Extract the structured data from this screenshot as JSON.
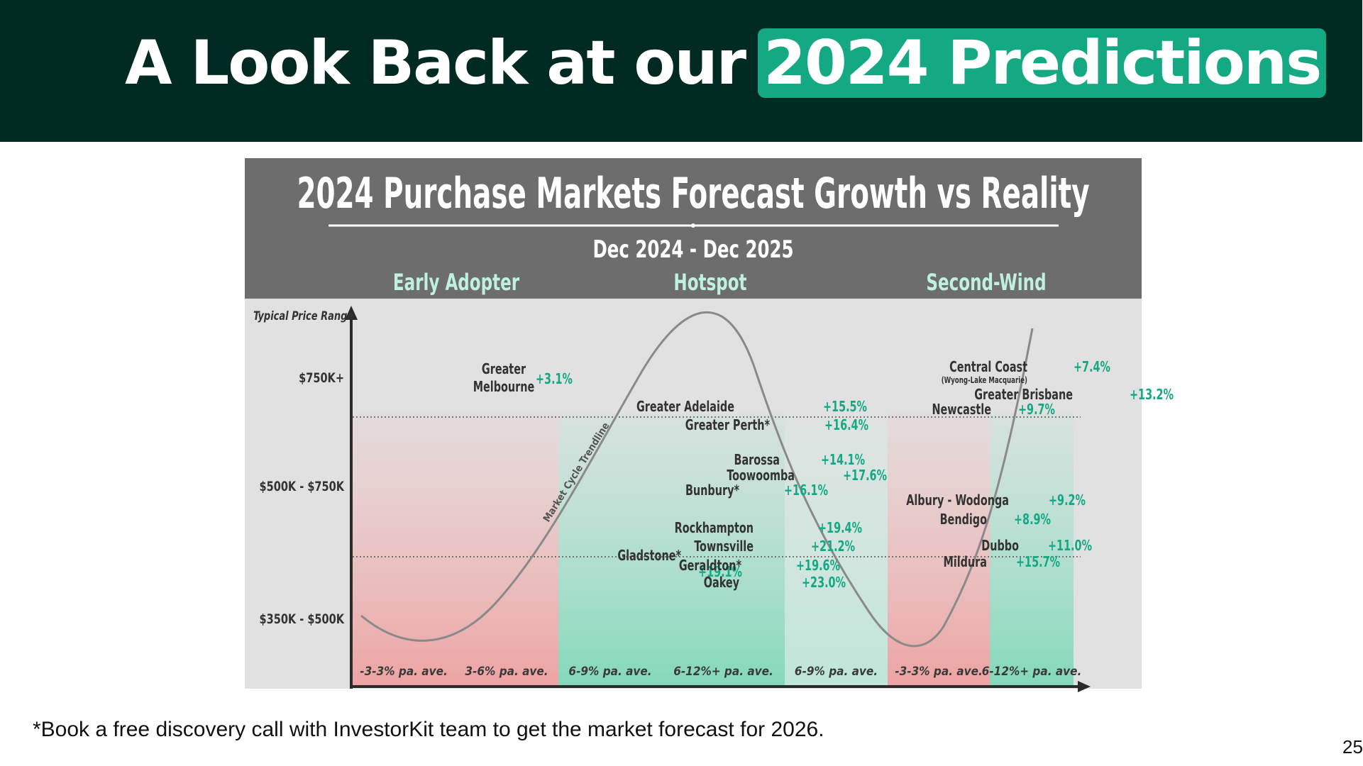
{
  "slide": {
    "title_prefix": "A Look Back at our",
    "title_highlight": "2024 Predictions",
    "footer_note": "*Book a free discovery call with InvestorKit team to get the market forecast for 2026.",
    "page_number": "25",
    "colors": {
      "header_bg": "#002a22",
      "highlight": "#14a983",
      "growth_text": "#14a983",
      "phase_text": "#bff0e2",
      "decline_band": "#f3b8b8",
      "growth_band": "#9fe3cc"
    }
  },
  "infographic": {
    "title": "2024 Purchase Markets Forecast Growth vs Reality",
    "subtitle": "Dec 2024 - Dec 2025",
    "y_axis_label": "Typical Price Range",
    "curve_label": "Market Cycle Trendline",
    "phases": [
      "Early Adopter",
      "Hotspot",
      "Second-Wind"
    ],
    "price_ranges": [
      "$750K+",
      "$500K - $750K",
      "$350K - $500K"
    ],
    "forecast_bands": [
      {
        "label": "-3-3% pa. ave.",
        "tone": "decline"
      },
      {
        "label": "3-6% pa. ave.",
        "tone": "decline"
      },
      {
        "label": "6-9% pa. ave.",
        "tone": "growth"
      },
      {
        "label": "6-12%+ pa. ave.",
        "tone": "growth"
      },
      {
        "label": "6-9% pa. ave.",
        "tone": "growth"
      },
      {
        "label": "-3-3% pa. ave.",
        "tone": "decline"
      },
      {
        "label": "6-12%+ pa. ave.",
        "tone": "growth"
      }
    ],
    "markets": [
      {
        "name": "Greater",
        "name2": "Melbourne",
        "growth": "+3.1%"
      },
      {
        "name": "Greater Adelaide",
        "growth": "+15.5%"
      },
      {
        "name": "Greater Perth*",
        "growth": "+16.4%"
      },
      {
        "name": "Barossa",
        "growth": "+14.1%"
      },
      {
        "name": "Toowoomba",
        "growth": "+17.6%"
      },
      {
        "name": "Bunbury*",
        "growth": "+16.1%"
      },
      {
        "name": "Rockhampton",
        "growth": "+19.4%"
      },
      {
        "name": "Townsville",
        "growth": "+21.2%"
      },
      {
        "name": "Gladstone*",
        "growth": "+19.1%"
      },
      {
        "name": "Geraldton*",
        "growth": "+19.6%"
      },
      {
        "name": "Oakey",
        "growth": "+23.0%"
      },
      {
        "name": "Central Coast",
        "name2": "(Wyong-Lake Macquarie)",
        "growth": "+7.4%"
      },
      {
        "name": "Greater Brisbane",
        "growth": "+13.2%"
      },
      {
        "name": "Newcastle",
        "growth": "+9.7%"
      },
      {
        "name": "Albury - Wodonga",
        "growth": "+9.2%"
      },
      {
        "name": "Bendigo",
        "growth": "+8.9%"
      },
      {
        "name": "Dubbo",
        "growth": "+11.0%"
      },
      {
        "name": "Mildura",
        "growth": "+15.7%"
      }
    ]
  }
}
